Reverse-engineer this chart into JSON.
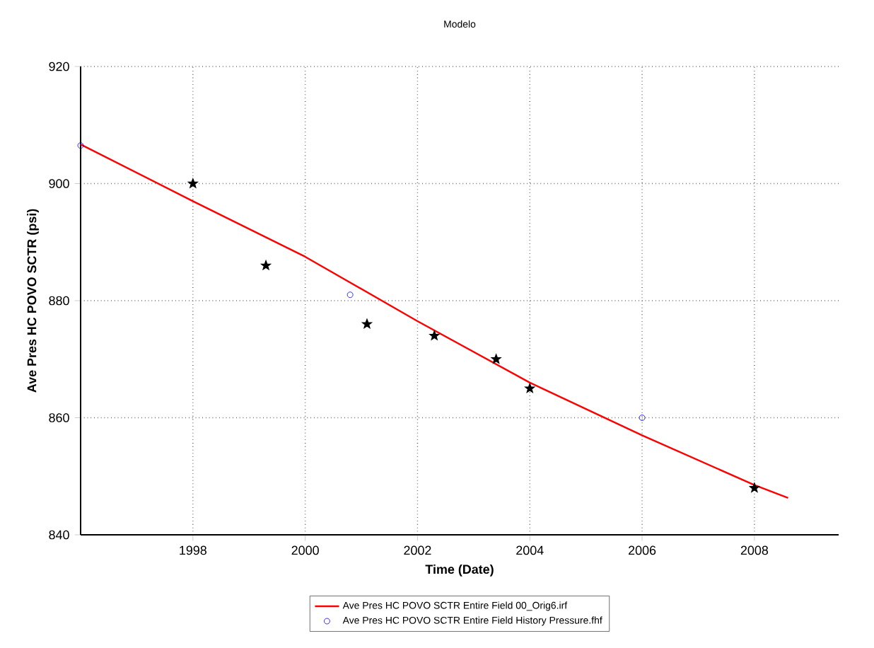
{
  "chart_data": {
    "type": "line",
    "title": "Modelo",
    "xlabel": "Time (Date)",
    "ylabel": "Ave Pres HC POVO SCTR (psi)",
    "xlim": [
      1996,
      2009.5
    ],
    "ylim": [
      840,
      920
    ],
    "xticks": [
      1998,
      2000,
      2002,
      2004,
      2006,
      2008
    ],
    "yticks": [
      840,
      860,
      880,
      900,
      920
    ],
    "grid": true,
    "legend": "bottom",
    "series": [
      {
        "name": "Ave Pres HC POVO SCTR Entire  Field 00_Orig6.irf",
        "color": "#ff0000",
        "marker": "none",
        "x": [
          1996,
          1998,
          2000,
          2002,
          2004,
          2006,
          2008,
          2008.6
        ],
        "values": [
          906.7,
          897,
          887.5,
          876.5,
          866,
          857,
          848.5,
          846.3
        ]
      },
      {
        "name": "Ave Pres HC POVO SCTR Entire Field History Pressure.fhf",
        "type": "scatter",
        "color": "#0000ff",
        "marker": "circle",
        "x": [
          1996.0,
          2000.8,
          2006.0
        ],
        "values": [
          906.5,
          881,
          860
        ]
      },
      {
        "type": "scatter",
        "color": "#000000",
        "marker": "star",
        "x": [
          1998.0,
          1999.3,
          2001.1,
          2002.3,
          2003.4,
          2004.0,
          2008.0
        ],
        "values": [
          900,
          886,
          876,
          874,
          870,
          865,
          848
        ]
      }
    ]
  }
}
